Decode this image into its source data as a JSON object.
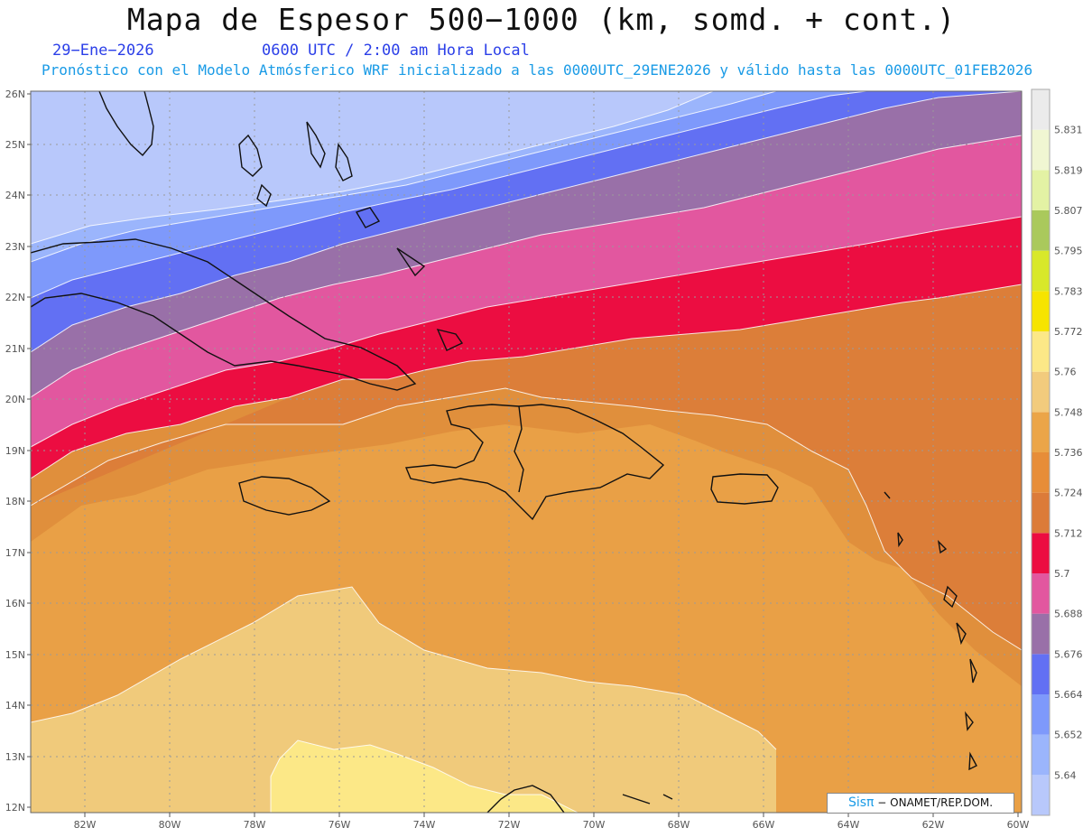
{
  "header": {
    "title": "Mapa de Espesor 500−1000 (km, somd. + cont.)",
    "date": "29−Ene−2026",
    "utc_time": "0600 UTC / 2:00 am Hora Local",
    "subtitle": "Pronóstico con el Modelo Atmósferico WRF inicializado a las 0000UTC_29ENE2026 y válido hasta las  0000UTC_01FEB2026"
  },
  "axes": {
    "lat_labels": [
      "26N",
      "25N",
      "24N",
      "23N",
      "22N",
      "21N",
      "20N",
      "19N",
      "18N",
      "17N",
      "16N",
      "15N",
      "14N",
      "13N",
      "12N"
    ],
    "lon_labels": [
      "82W",
      "80W",
      "78W",
      "76W",
      "74W",
      "72W",
      "70W",
      "68W",
      "66W",
      "64W",
      "62W",
      "60W"
    ]
  },
  "colorbar": {
    "levels": [
      "5.64",
      "5.652",
      "5.664",
      "5.676",
      "5.688",
      "5.7",
      "5.712",
      "5.724",
      "5.736",
      "5.748",
      "5.76",
      "5.772",
      "5.783",
      "5.795",
      "5.807",
      "5.819",
      "5.831"
    ],
    "colors": [
      "#b8c8fb",
      "#9bb5fc",
      "#7e99fb",
      "#6270f3",
      "#9970a8",
      "#e2579f",
      "#ec0d41",
      "#dc7b39",
      "#e78d38",
      "#eba548",
      "#f2cb7d",
      "#fce887",
      "#f6e400",
      "#d8e82a",
      "#aac95c",
      "#e3f2a4",
      "#f0f6d2",
      "#ebebeb"
    ]
  },
  "credit": {
    "brand": "Sisπ",
    "text": "− ONAMET/REP.DOM."
  }
}
